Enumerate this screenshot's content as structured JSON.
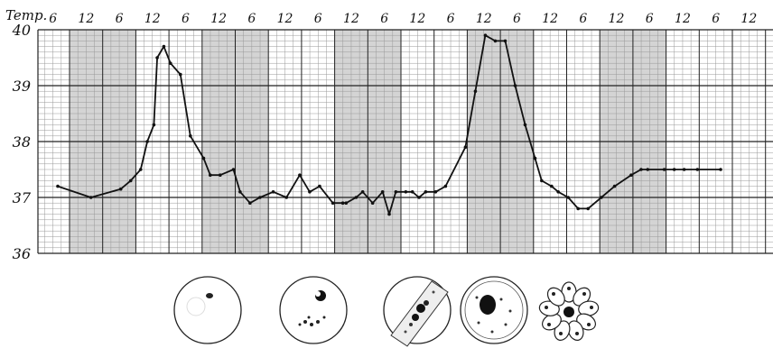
{
  "chart_data": {
    "type": "line",
    "y_axis_label": "Temp.",
    "x_tick_labels": [
      "6",
      "12",
      "6",
      "12",
      "6",
      "12",
      "6",
      "12",
      "6",
      "12",
      "6",
      "12",
      "6",
      "12",
      "6",
      "12",
      "6",
      "12",
      "6",
      "12",
      "6",
      "12"
    ],
    "y_tick_labels": [
      "40",
      "39",
      "38",
      "37",
      "36"
    ],
    "ylim": [
      36,
      40
    ],
    "grid": true,
    "shaded_night_bands": [
      [
        1,
        3
      ],
      [
        5,
        7
      ],
      [
        9,
        11
      ],
      [
        13,
        15
      ],
      [
        17,
        19
      ]
    ],
    "series": [
      {
        "values_x_in_quarter_days": [
          0,
          1.0,
          1.9,
          2.2,
          2.5,
          2.7,
          2.9,
          3.0,
          3.2,
          3.4,
          3.7,
          4.0,
          4.4,
          4.6,
          4.9,
          5.3,
          5.5,
          5.8,
          6.1,
          6.5,
          6.9,
          7.3,
          7.6,
          7.9,
          8.3,
          8.6,
          8.7,
          9.0,
          9.2,
          9.5,
          9.8,
          10.0,
          10.2,
          10.5,
          10.7,
          10.9,
          11.1,
          11.4,
          11.7,
          12.3,
          12.6,
          12.9,
          13.2,
          13.5,
          13.8,
          14.1,
          14.4,
          14.6,
          14.9,
          15.1,
          15.4,
          15.7,
          16.0,
          16.4,
          16.8,
          17.3,
          17.6,
          17.8,
          18.3,
          18.6,
          18.9,
          19.3,
          20.0
        ],
        "values_temp": [
          37.2,
          37.0,
          37.15,
          37.3,
          37.5,
          38.0,
          38.3,
          39.5,
          39.7,
          39.4,
          39.2,
          38.1,
          37.7,
          37.4,
          37.4,
          37.5,
          37.1,
          36.9,
          37.0,
          37.1,
          37.0,
          37.4,
          37.1,
          37.2,
          36.9,
          36.9,
          36.9,
          37.0,
          37.1,
          36.9,
          37.1,
          36.7,
          37.1,
          37.1,
          37.1,
          37.0,
          37.1,
          37.1,
          37.2,
          37.9,
          38.9,
          39.9,
          39.8,
          39.8,
          39.0,
          38.3,
          37.7,
          37.3,
          37.2,
          37.1,
          37.0,
          36.8,
          36.8,
          37.0,
          37.2,
          37.4,
          37.5,
          37.5,
          37.5,
          37.5,
          37.5,
          37.5,
          37.5
        ]
      }
    ]
  },
  "figures": [
    {
      "icon": "blood-cell-small-parasite"
    },
    {
      "icon": "blood-cell-growing-parasite"
    },
    {
      "icon": "elongated-cell-with-pigment"
    },
    {
      "icon": "round-cell-with-pigment-mass"
    },
    {
      "icon": "segmenting-rosette"
    }
  ]
}
